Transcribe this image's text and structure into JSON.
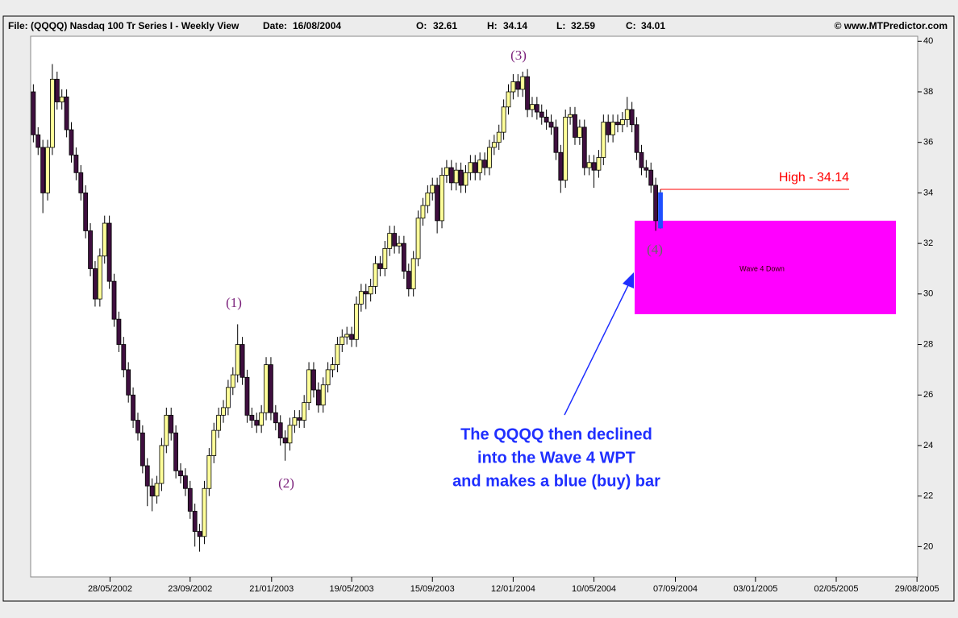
{
  "header": {
    "file": "File: (QQQQ) Nasdaq 100 Tr Series I - Weekly View",
    "date_label": "Date:",
    "o_label": "O:",
    "h_label": "H:",
    "l_label": "L:",
    "c_label": "C:",
    "copyright": "© www.MTPredictor.com"
  },
  "chart_data": {
    "type": "candlestick",
    "x": [
      "04/02/2002",
      "11/02/2002",
      "18/02/2002",
      "25/02/2002",
      "04/03/2002",
      "11/03/2002",
      "18/03/2002",
      "25/03/2002",
      "01/04/2002",
      "08/04/2002",
      "15/04/2002",
      "22/04/2002",
      "29/04/2002",
      "06/05/2002",
      "13/05/2002",
      "20/05/2002",
      "27/05/2002",
      "03/06/2002",
      "10/06/2002",
      "17/06/2002",
      "24/06/2002",
      "01/07/2002",
      "08/07/2002",
      "15/07/2002",
      "22/07/2002",
      "29/07/2002",
      "05/08/2002",
      "12/08/2002",
      "19/08/2002",
      "26/08/2002",
      "02/09/2002",
      "09/09/2002",
      "16/09/2002",
      "23/09/2002",
      "30/09/2002",
      "07/10/2002",
      "14/10/2002",
      "21/10/2002",
      "28/10/2002",
      "04/11/2002",
      "11/11/2002",
      "18/11/2002",
      "25/11/2002",
      "02/12/2002",
      "09/12/2002",
      "16/12/2002",
      "23/12/2002",
      "30/12/2002",
      "06/01/2003",
      "13/01/2003",
      "20/01/2003",
      "27/01/2003",
      "03/02/2003",
      "10/02/2003",
      "17/02/2003",
      "24/02/2003",
      "03/03/2003",
      "10/03/2003",
      "17/03/2003",
      "24/03/2003",
      "31/03/2003",
      "07/04/2003",
      "14/04/2003",
      "21/04/2003",
      "28/04/2003",
      "05/05/2003",
      "12/05/2003",
      "19/05/2003",
      "26/05/2003",
      "02/06/2003",
      "09/06/2003",
      "16/06/2003",
      "23/06/2003",
      "30/06/2003",
      "07/07/2003",
      "14/07/2003",
      "21/07/2003",
      "28/07/2003",
      "04/08/2003",
      "11/08/2003",
      "18/08/2003",
      "25/08/2003",
      "01/09/2003",
      "08/09/2003",
      "15/09/2003",
      "22/09/2003",
      "29/09/2003",
      "06/10/2003",
      "13/10/2003",
      "20/10/2003",
      "27/10/2003",
      "03/11/2003",
      "10/11/2003",
      "17/11/2003",
      "24/11/2003",
      "01/12/2003",
      "08/12/2003",
      "15/12/2003",
      "22/12/2003",
      "29/12/2003",
      "05/01/2004",
      "12/01/2004",
      "19/01/2004",
      "26/01/2004",
      "02/02/2004",
      "09/02/2004",
      "16/02/2004",
      "23/02/2004",
      "01/03/2004",
      "08/03/2004",
      "15/03/2004",
      "22/03/2004",
      "29/03/2004",
      "05/04/2004",
      "12/04/2004",
      "19/04/2004",
      "26/04/2004",
      "03/05/2004",
      "10/05/2004",
      "17/05/2004",
      "24/05/2004",
      "31/05/2004",
      "07/06/2004",
      "14/06/2004",
      "21/06/2004",
      "28/06/2004",
      "05/07/2004",
      "12/07/2004",
      "19/07/2004",
      "26/07/2004",
      "02/08/2004",
      "09/08/2004"
    ],
    "candles": [
      [
        38.0,
        38.3,
        36.0,
        36.3
      ],
      [
        36.3,
        36.6,
        35.5,
        35.8
      ],
      [
        35.8,
        36.1,
        33.2,
        34.0
      ],
      [
        34.0,
        36.1,
        33.7,
        35.8
      ],
      [
        35.8,
        39.1,
        35.5,
        38.5
      ],
      [
        38.5,
        38.8,
        37.3,
        37.6
      ],
      [
        37.6,
        38.1,
        37.3,
        37.8
      ],
      [
        37.8,
        38.1,
        36.2,
        36.5
      ],
      [
        36.5,
        36.8,
        35.2,
        35.5
      ],
      [
        35.5,
        35.8,
        34.5,
        34.8
      ],
      [
        34.8,
        35.1,
        33.7,
        34.0
      ],
      [
        34.0,
        34.3,
        32.2,
        32.5
      ],
      [
        32.5,
        32.8,
        30.7,
        31.0
      ],
      [
        31.0,
        31.3,
        29.5,
        29.8
      ],
      [
        29.8,
        31.8,
        29.5,
        31.5
      ],
      [
        31.5,
        33.1,
        31.2,
        32.8
      ],
      [
        32.8,
        33.1,
        30.2,
        30.5
      ],
      [
        30.5,
        30.8,
        28.7,
        29.0
      ],
      [
        29.0,
        29.3,
        27.7,
        28.0
      ],
      [
        28.0,
        28.3,
        26.7,
        27.0
      ],
      [
        27.0,
        27.3,
        25.7,
        26.0
      ],
      [
        26.0,
        26.3,
        24.7,
        25.0
      ],
      [
        25.0,
        25.3,
        24.2,
        24.5
      ],
      [
        24.5,
        24.8,
        22.9,
        23.2
      ],
      [
        23.2,
        23.5,
        21.6,
        22.4
      ],
      [
        22.4,
        22.7,
        21.4,
        22.0
      ],
      [
        22.0,
        22.8,
        21.7,
        22.5
      ],
      [
        22.5,
        24.3,
        22.2,
        24.0
      ],
      [
        24.0,
        25.5,
        23.7,
        25.2
      ],
      [
        25.2,
        25.5,
        24.2,
        24.5
      ],
      [
        24.5,
        24.8,
        22.7,
        23.0
      ],
      [
        23.0,
        23.3,
        22.5,
        22.8
      ],
      [
        22.8,
        23.1,
        22.0,
        22.3
      ],
      [
        22.3,
        22.6,
        21.1,
        21.4
      ],
      [
        21.4,
        21.7,
        20.0,
        20.6
      ],
      [
        20.6,
        20.9,
        19.8,
        20.4
      ],
      [
        20.4,
        22.6,
        20.1,
        22.3
      ],
      [
        22.3,
        23.9,
        22.0,
        23.6
      ],
      [
        23.6,
        24.9,
        23.3,
        24.6
      ],
      [
        24.6,
        25.5,
        24.3,
        25.2
      ],
      [
        25.2,
        25.8,
        24.9,
        25.5
      ],
      [
        25.5,
        26.6,
        25.2,
        26.3
      ],
      [
        26.3,
        27.1,
        26.0,
        26.8
      ],
      [
        26.8,
        28.8,
        26.5,
        28.0
      ],
      [
        28.0,
        28.3,
        26.4,
        26.7
      ],
      [
        26.7,
        27.0,
        24.9,
        25.2
      ],
      [
        25.2,
        25.5,
        24.7,
        25.0
      ],
      [
        25.0,
        25.3,
        24.5,
        24.8
      ],
      [
        24.8,
        25.6,
        24.5,
        25.3
      ],
      [
        25.3,
        27.5,
        25.0,
        27.2
      ],
      [
        27.2,
        27.5,
        25.0,
        25.3
      ],
      [
        25.3,
        25.6,
        24.6,
        24.9
      ],
      [
        24.9,
        25.2,
        24.0,
        24.3
      ],
      [
        24.3,
        24.6,
        23.4,
        24.1
      ],
      [
        24.1,
        25.1,
        23.8,
        24.8
      ],
      [
        24.8,
        25.4,
        24.5,
        25.1
      ],
      [
        25.1,
        25.4,
        24.7,
        25.0
      ],
      [
        25.0,
        26.0,
        24.7,
        25.7
      ],
      [
        25.7,
        27.3,
        25.4,
        27.0
      ],
      [
        27.0,
        27.3,
        25.9,
        26.2
      ],
      [
        26.2,
        26.5,
        25.3,
        25.6
      ],
      [
        25.6,
        26.7,
        25.3,
        26.4
      ],
      [
        26.4,
        27.3,
        26.1,
        27.0
      ],
      [
        27.0,
        27.5,
        26.7,
        27.2
      ],
      [
        27.2,
        28.3,
        26.9,
        28.0
      ],
      [
        28.0,
        28.6,
        27.7,
        28.3
      ],
      [
        28.3,
        28.7,
        28.0,
        28.4
      ],
      [
        28.4,
        28.7,
        27.9,
        28.2
      ],
      [
        28.2,
        29.9,
        27.9,
        29.6
      ],
      [
        29.6,
        30.4,
        29.3,
        30.1
      ],
      [
        30.1,
        30.4,
        29.4,
        30.0
      ],
      [
        30.0,
        30.6,
        29.7,
        30.3
      ],
      [
        30.3,
        31.5,
        30.0,
        31.2
      ],
      [
        31.2,
        31.5,
        30.7,
        31.0
      ],
      [
        31.0,
        32.1,
        30.7,
        31.8
      ],
      [
        31.8,
        32.7,
        31.5,
        32.4
      ],
      [
        32.4,
        32.7,
        31.6,
        31.9
      ],
      [
        31.9,
        32.3,
        31.6,
        32.0
      ],
      [
        32.0,
        32.3,
        30.6,
        30.9
      ],
      [
        30.9,
        31.2,
        29.9,
        30.2
      ],
      [
        30.2,
        31.7,
        29.9,
        31.4
      ],
      [
        31.4,
        33.3,
        31.1,
        33.0
      ],
      [
        33.0,
        33.8,
        32.7,
        33.5
      ],
      [
        33.5,
        34.3,
        33.2,
        34.0
      ],
      [
        34.0,
        34.6,
        33.7,
        34.3
      ],
      [
        34.3,
        34.6,
        32.4,
        32.9
      ],
      [
        32.9,
        35.0,
        32.6,
        34.7
      ],
      [
        34.7,
        35.3,
        34.4,
        35.0
      ],
      [
        35.0,
        35.3,
        34.1,
        34.4
      ],
      [
        34.4,
        35.2,
        34.1,
        34.9
      ],
      [
        34.9,
        35.2,
        34.0,
        34.3
      ],
      [
        34.3,
        35.1,
        34.0,
        34.8
      ],
      [
        34.8,
        35.5,
        34.5,
        35.2
      ],
      [
        35.2,
        35.5,
        34.5,
        34.8
      ],
      [
        34.8,
        35.6,
        34.5,
        35.3
      ],
      [
        35.3,
        35.6,
        34.7,
        35.0
      ],
      [
        35.0,
        36.1,
        34.7,
        35.8
      ],
      [
        35.8,
        36.3,
        35.5,
        36.0
      ],
      [
        36.0,
        36.7,
        35.7,
        36.4
      ],
      [
        36.4,
        37.7,
        36.1,
        37.4
      ],
      [
        37.4,
        38.3,
        37.1,
        38.0
      ],
      [
        38.0,
        38.7,
        37.7,
        38.4
      ],
      [
        38.4,
        38.7,
        37.8,
        38.1
      ],
      [
        38.1,
        38.8,
        37.8,
        38.6
      ],
      [
        38.6,
        38.9,
        37.0,
        37.3
      ],
      [
        37.3,
        37.8,
        37.0,
        37.5
      ],
      [
        37.5,
        37.8,
        36.9,
        37.2
      ],
      [
        37.2,
        37.5,
        36.7,
        37.0
      ],
      [
        37.0,
        37.3,
        36.5,
        36.8
      ],
      [
        36.8,
        37.1,
        36.3,
        36.6
      ],
      [
        36.6,
        36.9,
        35.3,
        35.6
      ],
      [
        35.6,
        35.9,
        34.0,
        34.5
      ],
      [
        34.5,
        37.3,
        34.2,
        37.0
      ],
      [
        37.0,
        37.4,
        36.7,
        37.1
      ],
      [
        37.1,
        37.4,
        35.9,
        36.2
      ],
      [
        36.2,
        36.9,
        35.9,
        36.6
      ],
      [
        36.6,
        36.9,
        34.7,
        35.0
      ],
      [
        35.0,
        35.5,
        34.7,
        35.2
      ],
      [
        35.2,
        35.5,
        34.2,
        34.9
      ],
      [
        34.9,
        35.7,
        34.6,
        35.4
      ],
      [
        35.4,
        37.1,
        35.1,
        36.8
      ],
      [
        36.8,
        37.1,
        36.0,
        36.3
      ],
      [
        36.3,
        37.1,
        36.0,
        36.8
      ],
      [
        36.8,
        37.1,
        36.4,
        36.7
      ],
      [
        36.7,
        37.2,
        36.4,
        36.9
      ],
      [
        36.9,
        37.8,
        36.6,
        37.3
      ],
      [
        37.3,
        37.6,
        36.4,
        36.7
      ],
      [
        36.7,
        37.0,
        35.3,
        35.6
      ],
      [
        35.6,
        35.9,
        34.7,
        35.0
      ],
      [
        35.0,
        35.3,
        34.6,
        34.9
      ],
      [
        34.9,
        35.2,
        34.0,
        34.3
      ],
      [
        34.3,
        34.6,
        32.5,
        32.9
      ]
    ],
    "up_color": "#ffff99",
    "down_color": "#3f0f3f",
    "last_bar": {
      "x": "16/08/2004",
      "open": 32.61,
      "high": 34.14,
      "low": 32.59,
      "close": 34.01,
      "color": "#1f4fff"
    },
    "wave4_zone": [
      29.2,
      32.9
    ],
    "zone_color": "#ff00ff",
    "zone_label": "Wave 4 Down",
    "high_label": "High - 34.14",
    "high_line_color": "#ff0000",
    "wave_labels": [
      "(1)",
      "(2)",
      "(3)",
      "(4)"
    ],
    "note": [
      "The QQQQ then declined",
      "into the Wave 4 WPT",
      "and makes a blue (buy) bar"
    ],
    "xlim": [
      "31/01/2002",
      "30/08/2005"
    ],
    "xticks": [
      "28/05/2002",
      "23/09/2002",
      "21/01/2003",
      "19/05/2003",
      "15/09/2003",
      "12/01/2004",
      "10/05/2004",
      "07/09/2004",
      "03/01/2005",
      "02/05/2005",
      "29/08/2005"
    ],
    "ylim": [
      18.8,
      40.2
    ],
    "yticks": [
      20,
      22,
      24,
      26,
      28,
      30,
      32,
      34,
      36,
      38,
      40
    ]
  }
}
